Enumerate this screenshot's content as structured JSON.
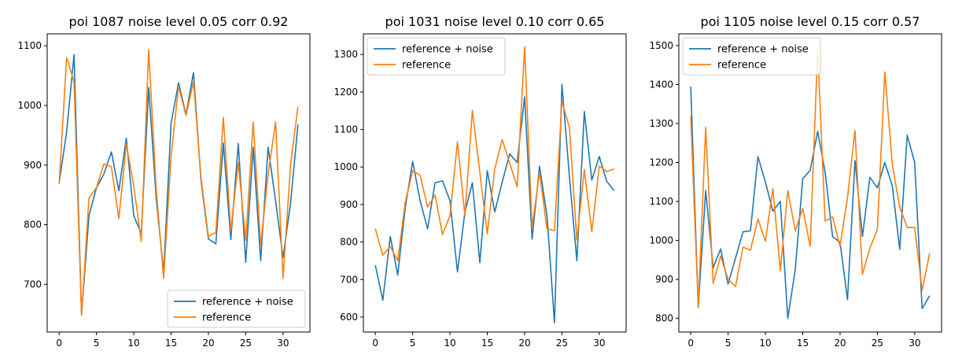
{
  "chart_data": [
    {
      "type": "line",
      "title": "poi 1087 noise level 0.05 corr 0.92",
      "xlim": [
        -1.6,
        33.6
      ],
      "ylim": [
        620,
        1120
      ],
      "xticks": [
        0,
        5,
        10,
        15,
        20,
        25,
        30
      ],
      "yticks": [
        700,
        800,
        900,
        1000,
        1100
      ],
      "legend": "bottom-right",
      "series": [
        {
          "name": "reference + noise",
          "color": "#1f77b4",
          "x": [
            0,
            1,
            2,
            3,
            4,
            5,
            6,
            7,
            8,
            9,
            10,
            11,
            12,
            13,
            14,
            15,
            16,
            17,
            18,
            19,
            20,
            21,
            22,
            23,
            24,
            25,
            26,
            27,
            28,
            29,
            30,
            31,
            32
          ],
          "y": [
            870,
            955,
            1085,
            650,
            815,
            862,
            885,
            922,
            857,
            945,
            815,
            785,
            1030,
            845,
            720,
            970,
            1038,
            985,
            1055,
            875,
            776,
            768,
            937,
            775,
            936,
            737,
            930,
            740,
            930,
            840,
            745,
            835,
            968
          ]
        },
        {
          "name": "reference",
          "color": "#ff7f0e",
          "x": [
            0,
            1,
            2,
            3,
            4,
            5,
            6,
            7,
            8,
            9,
            10,
            11,
            12,
            13,
            14,
            15,
            16,
            17,
            18,
            19,
            20,
            21,
            22,
            23,
            24,
            25,
            26,
            27,
            28,
            29,
            30,
            31,
            32
          ],
          "y": [
            868,
            1080,
            1040,
            648,
            845,
            862,
            902,
            897,
            810,
            935,
            865,
            772,
            1093,
            860,
            710,
            915,
            1032,
            983,
            1040,
            880,
            780,
            787,
            980,
            790,
            904,
            774,
            972,
            765,
            885,
            972,
            710,
            900,
            998
          ]
        }
      ]
    },
    {
      "type": "line",
      "title": "poi 1031 noise level 0.10 corr 0.65",
      "xlim": [
        -1.6,
        33.6
      ],
      "ylim": [
        560,
        1355
      ],
      "xticks": [
        0,
        5,
        10,
        15,
        20,
        25,
        30
      ],
      "yticks": [
        600,
        700,
        800,
        900,
        1000,
        1100,
        1200,
        1300
      ],
      "legend": "top-left",
      "series": [
        {
          "name": "reference + noise",
          "color": "#1f77b4",
          "x": [
            0,
            1,
            2,
            3,
            4,
            5,
            6,
            7,
            8,
            9,
            10,
            11,
            12,
            13,
            14,
            15,
            16,
            17,
            18,
            19,
            20,
            21,
            22,
            23,
            24,
            25,
            26,
            27,
            28,
            29,
            30,
            31,
            32
          ],
          "y": [
            738,
            645,
            815,
            712,
            890,
            1015,
            910,
            835,
            958,
            963,
            910,
            720,
            880,
            958,
            745,
            990,
            880,
            960,
            1035,
            1012,
            1187,
            808,
            1002,
            870,
            585,
            1220,
            975,
            750,
            1148,
            965,
            1028,
            962,
            937
          ]
        },
        {
          "name": "reference",
          "color": "#ff7f0e",
          "x": [
            0,
            1,
            2,
            3,
            4,
            5,
            6,
            7,
            8,
            9,
            10,
            11,
            12,
            13,
            14,
            15,
            16,
            17,
            18,
            19,
            20,
            21,
            22,
            23,
            24,
            25,
            26,
            27,
            28,
            29,
            30,
            31,
            32
          ],
          "y": [
            835,
            765,
            788,
            750,
            905,
            990,
            978,
            893,
            925,
            820,
            870,
            1067,
            870,
            1151,
            985,
            822,
            995,
            1073,
            1010,
            947,
            1320,
            840,
            985,
            835,
            830,
            1175,
            1105,
            805,
            993,
            827,
            1002,
            988,
            995
          ]
        }
      ]
    },
    {
      "type": "line",
      "title": "poi 1105 noise level 0.15 corr 0.57",
      "xlim": [
        -1.6,
        33.6
      ],
      "ylim": [
        765,
        1530
      ],
      "xticks": [
        0,
        5,
        10,
        15,
        20,
        25,
        30
      ],
      "yticks": [
        800,
        900,
        1000,
        1100,
        1200,
        1300,
        1400,
        1500
      ],
      "legend": "top-left",
      "series": [
        {
          "name": "reference + noise",
          "color": "#1f77b4",
          "x": [
            0,
            1,
            2,
            3,
            4,
            5,
            6,
            7,
            8,
            9,
            10,
            11,
            12,
            13,
            14,
            15,
            16,
            17,
            18,
            19,
            20,
            21,
            22,
            23,
            24,
            25,
            26,
            27,
            28,
            29,
            30,
            31,
            32
          ],
          "y": [
            1395,
            828,
            1128,
            930,
            978,
            888,
            955,
            1022,
            1025,
            1215,
            1150,
            1075,
            1100,
            800,
            925,
            1158,
            1180,
            1280,
            1175,
            1010,
            995,
            848,
            1205,
            1010,
            1162,
            1135,
            1200,
            1140,
            977,
            1270,
            1200,
            825,
            858
          ]
        },
        {
          "name": "reference",
          "color": "#ff7f0e",
          "x": [
            0,
            1,
            2,
            3,
            4,
            5,
            6,
            7,
            8,
            9,
            10,
            11,
            12,
            13,
            14,
            15,
            16,
            17,
            18,
            19,
            20,
            21,
            22,
            23,
            24,
            25,
            26,
            27,
            28,
            29,
            30,
            31,
            32
          ],
          "y": [
            1318,
            830,
            1290,
            890,
            960,
            900,
            882,
            983,
            975,
            1055,
            998,
            1133,
            922,
            1128,
            1025,
            1082,
            985,
            1490,
            1050,
            1060,
            985,
            1110,
            1282,
            913,
            980,
            1028,
            1432,
            1195,
            1085,
            1033,
            1033,
            872,
            967
          ]
        }
      ]
    }
  ]
}
